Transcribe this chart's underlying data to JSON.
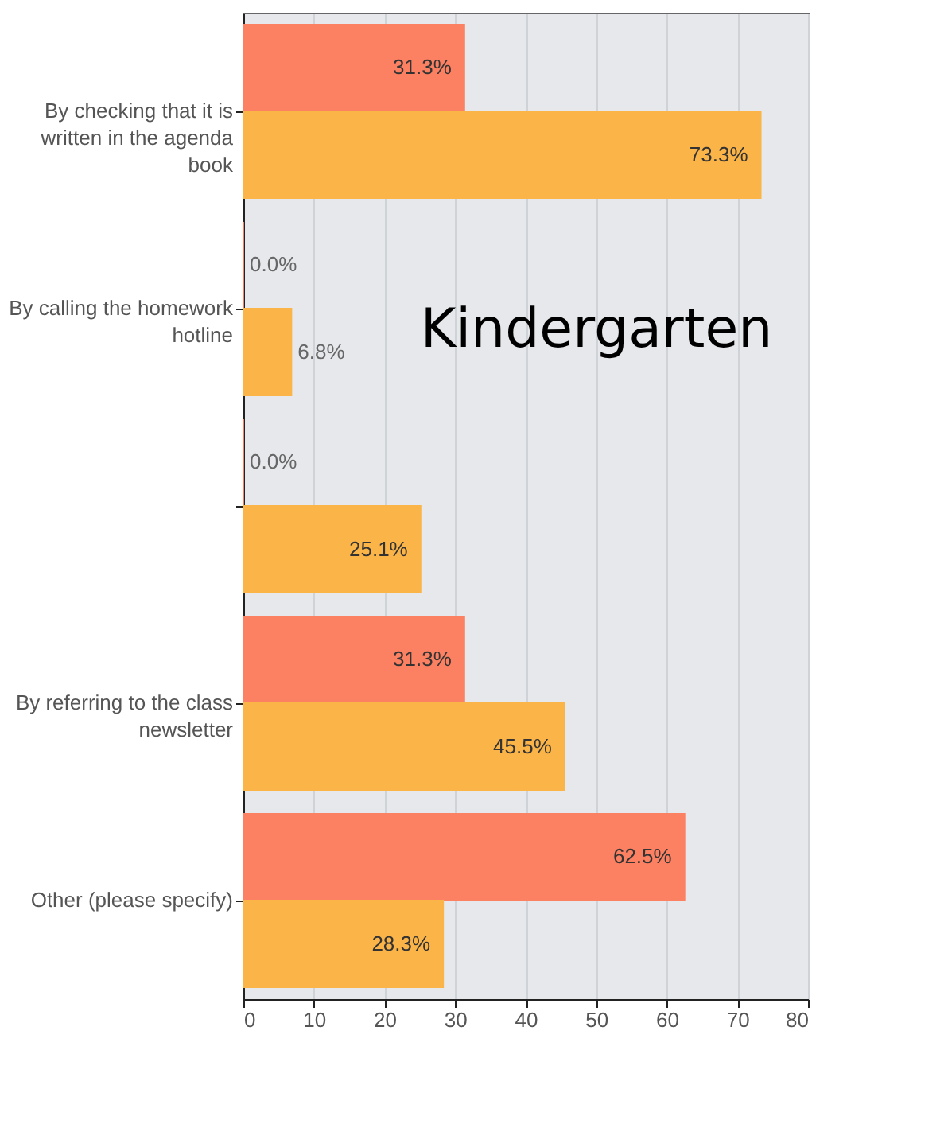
{
  "chart_data": {
    "type": "bar",
    "orientation": "horizontal",
    "categories": [
      "By checking that it is written in the agenda book",
      "By calling the homework hotline",
      null,
      "By referring to the class newsletter",
      "Other (please specify)"
    ],
    "series": [
      {
        "color": "#fc8062",
        "values": [
          31.3,
          0.0,
          0.0,
          31.3,
          62.5
        ],
        "value_labels": [
          "31.3%",
          "0.0%",
          "0.0%",
          "31.3%",
          "62.5%"
        ]
      },
      {
        "color": "#fbb448",
        "values": [
          73.3,
          6.8,
          25.1,
          45.5,
          28.3
        ],
        "value_labels": [
          "73.3%",
          "6.8%",
          "25.1%",
          "45.5%",
          "28.3%"
        ]
      }
    ],
    "xlim": [
      0,
      80
    ],
    "xticks": [
      0,
      10,
      20,
      30,
      40,
      50,
      60,
      70,
      80
    ],
    "grid": "x",
    "annotations": [
      "Kindergarten"
    ]
  }
}
